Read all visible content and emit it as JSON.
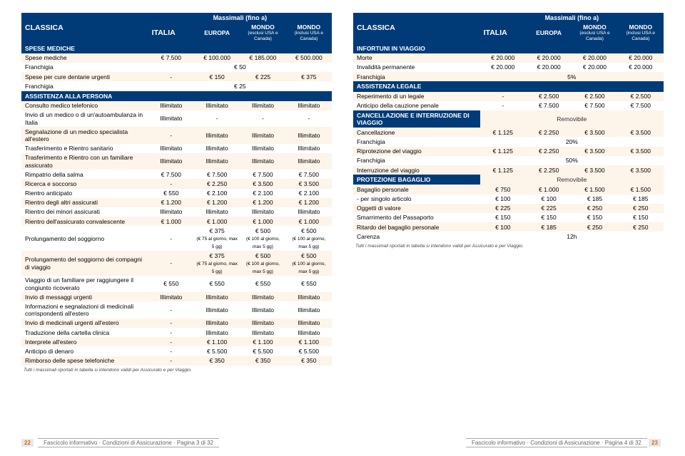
{
  "colors": {
    "accent": "#003b77",
    "alt_row": "#fdf4ea"
  },
  "super_header": "Massimali (fino a)",
  "col_headers": [
    "ITALIA",
    "EUROPA",
    "MONDO",
    "MONDO"
  ],
  "col_sub": [
    "",
    "",
    "(esclusi USA e Canada)",
    "(inclusi USA e Canada)"
  ],
  "left": {
    "title": "CLASSICA",
    "sections": [
      {
        "name": "SPESE MEDICHE",
        "rows": [
          {
            "l": "Spese mediche",
            "v": [
              "€ 7.500",
              "€ 100.000",
              "€ 185.000",
              "€ 500.000"
            ]
          },
          {
            "l": "Franchigia",
            "span": "€ 50"
          },
          {
            "l": "Spese per cure dentarie urgenti",
            "v": [
              "-",
              "€ 150",
              "€ 225",
              "€ 375"
            ]
          },
          {
            "l": "Franchigia",
            "span": "€ 25"
          }
        ]
      },
      {
        "name": "ASSISTENZA ALLA PERSONA",
        "rows": [
          {
            "l": "Consulto medico telefonico",
            "v": [
              "Illimitato",
              "Illimitato",
              "Illimitato",
              "Illimitato"
            ]
          },
          {
            "l": "Invio di un medico o di un'autoambulanza in Italia",
            "v": [
              "Illimitato",
              "-",
              "-",
              "-"
            ]
          },
          {
            "l": "Segnalazione di un medico specialista all'estero",
            "v": [
              "-",
              "Illimitato",
              "Illimitato",
              "Illimitato"
            ]
          },
          {
            "l": "Trasferimento e Rientro sanitario",
            "v": [
              "Illimitato",
              "Illimitato",
              "Illimitato",
              "Illimitato"
            ]
          },
          {
            "l": "Trasferimento e Rientro con un familiare assicurato",
            "v": [
              "Illimitato",
              "Illimitato",
              "Illimitato",
              "Illimitato"
            ]
          },
          {
            "l": "Rimpatrio della salma",
            "v": [
              "€ 7.500",
              "€ 7.500",
              "€ 7.500",
              "€ 7.500"
            ]
          },
          {
            "l": "Ricerca e soccorso",
            "v": [
              "-",
              "€ 2.250",
              "€ 3.500",
              "€ 3.500"
            ]
          },
          {
            "l": "Rientro anticipato",
            "v": [
              "€ 550",
              "€ 2.100",
              "€ 2.100",
              "€ 2.100"
            ]
          },
          {
            "l": "Rientro degli altri assicurati",
            "v": [
              "€ 1.200",
              "€ 1.200",
              "€ 1.200",
              "€ 1.200"
            ]
          },
          {
            "l": "Rientro dei minori assicurati",
            "v": [
              "Illimitato",
              "Illimitato",
              "Illimitato",
              "Illimitato"
            ]
          },
          {
            "l": "Rientro dell'assicurato convalescente",
            "v": [
              "€ 1.000",
              "€ 1.000",
              "€ 1.000",
              "€ 1.000"
            ]
          },
          {
            "l": "Prolungamento del soggiorno",
            "v": [
              "-",
              "€ 375\n(€ 75 al giorno, max 5 gg)",
              "€ 500\n(€ 100 al giorno, max 5 gg)",
              "€ 500\n(€ 100 al giorno, max 5 gg)"
            ]
          },
          {
            "l": "Prolungamento del soggiorno dei compagni di viaggio",
            "v": [
              "-",
              "€ 375\n(€ 75 al giorno, max 5 gg)",
              "€ 500\n(€ 100 al giorno, max 5 gg)",
              "€ 500\n(€ 100 al giorno, max 5 gg)"
            ]
          },
          {
            "l": "Viaggio di un familiare per raggiungere il congiunto ricoverato",
            "v": [
              "€ 550",
              "€ 550",
              "€ 550",
              "€ 550"
            ]
          },
          {
            "l": "Invio di messaggi urgenti",
            "v": [
              "Illimitato",
              "Illimitato",
              "Illimitato",
              "Illimitato"
            ]
          },
          {
            "l": "Informazioni e segnalazioni di medicinali corrispondenti all'estero",
            "v": [
              "-",
              "Illimitato",
              "Illimitato",
              "Illimitato"
            ]
          },
          {
            "l": "Invio di medicinali urgenti all'estero",
            "v": [
              "-",
              "Illimitato",
              "Illimitato",
              "Illimitato"
            ]
          },
          {
            "l": "Traduzione della cartella clinica",
            "v": [
              "-",
              "Illimitato",
              "Illimitato",
              "Illimitato"
            ]
          },
          {
            "l": "Interprete all'estero",
            "v": [
              "-",
              "€ 1.100",
              "€ 1.100",
              "€ 1.100"
            ]
          },
          {
            "l": "Anticipo di denaro",
            "v": [
              "-",
              "€ 5.500",
              "€ 5.500",
              "€ 5.500"
            ]
          },
          {
            "l": "Rimborso delle spese telefoniche",
            "v": [
              "-",
              "€ 350",
              "€ 350",
              "€ 350"
            ]
          }
        ]
      }
    ],
    "footnote": "Tutti i massimali riportati in tabella si intendono validi per Assicurato e per Viaggio."
  },
  "right": {
    "title": "CLASSICA",
    "sections": [
      {
        "name": "INFORTUNI IN VIAGGIO",
        "rows": [
          {
            "l": "Morte",
            "v": [
              "€ 20.000",
              "€ 20.000",
              "€ 20.000",
              "€ 20.000"
            ]
          },
          {
            "l": "Invalidità permanente",
            "v": [
              "€ 20.000",
              "€ 20.000",
              "€ 20.000",
              "€ 20.000"
            ]
          },
          {
            "l": "Franchigia",
            "span": "5%"
          }
        ]
      },
      {
        "name": "ASSISTENZA LEGALE",
        "rows": [
          {
            "l": "Reperimento di un legale",
            "v": [
              "-",
              "€ 2.500",
              "€ 2.500",
              "€ 2.500"
            ]
          },
          {
            "l": "Anticipo della cauzione penale",
            "v": [
              "-",
              "€ 7.500",
              "€ 7.500",
              "€ 7.500"
            ]
          }
        ]
      },
      {
        "name": "CANCELLAZIONE E INTERRUZIONE DI VIAGGIO",
        "span_after": "Removibile",
        "rows": [
          {
            "l": "Cancellazione",
            "v": [
              "€ 1.125",
              "€ 2.250",
              "€ 3.500",
              "€ 3.500"
            ]
          },
          {
            "l": "Franchigia",
            "span": "20%"
          },
          {
            "l": "Riprotezione del viaggio",
            "v": [
              "€ 1.125",
              "€ 2.250",
              "€ 3.500",
              "€ 3.500"
            ]
          },
          {
            "l": "Franchigia",
            "span": "50%"
          },
          {
            "l": "Interruzione del viaggio",
            "v": [
              "€ 1.125",
              "€ 2.250",
              "€ 3.500",
              "€ 3.500"
            ]
          }
        ]
      },
      {
        "name": "PROTEZIONE BAGAGLIO",
        "span_after": "Removibile",
        "rows": [
          {
            "l": "Bagaglio personale",
            "v": [
              "€ 750",
              "€ 1.000",
              "€ 1.500",
              "€ 1.500"
            ]
          },
          {
            "l": "- per singolo articolo",
            "v": [
              "€ 100",
              "€ 100",
              "€ 185",
              "€ 185"
            ]
          },
          {
            "l": "Oggetti di valore",
            "v": [
              "€ 225",
              "€ 225",
              "€ 250",
              "€ 250"
            ]
          },
          {
            "l": "Smarrimento del Passaporto",
            "v": [
              "€ 150",
              "€ 150",
              "€ 150",
              "€ 150"
            ]
          },
          {
            "l": "Ritardo del bagaglio personale",
            "v": [
              "€ 100",
              "€ 185",
              "€ 250",
              "€ 250"
            ]
          },
          {
            "l": "Carenza",
            "span": "12h"
          }
        ]
      }
    ],
    "footnote": "Tutti i massimali riportati in tabella si intendono validi per Assicurato e per Viaggio."
  },
  "footer": {
    "left_num": "22",
    "left_txt": "Fascicolo informativo · Condizioni di Assicurazione · Pagina 3 di 32",
    "right_txt": "Fascicolo informativo · Condizioni di Assicurazione · Pagina 4 di 32",
    "right_num": "23"
  }
}
